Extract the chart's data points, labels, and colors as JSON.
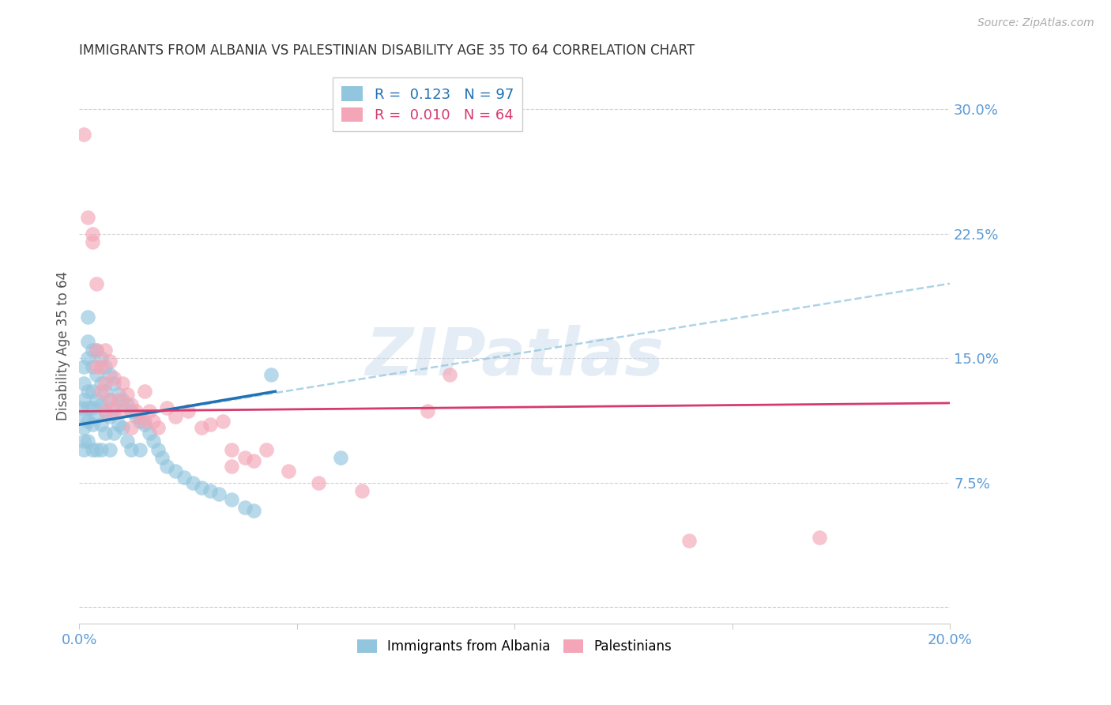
{
  "title": "IMMIGRANTS FROM ALBANIA VS PALESTINIAN DISABILITY AGE 35 TO 64 CORRELATION CHART",
  "source": "Source: ZipAtlas.com",
  "ylabel": "Disability Age 35 to 64",
  "ytick_labels": [
    "",
    "7.5%",
    "15.0%",
    "22.5%",
    "30.0%"
  ],
  "ytick_values": [
    0.0,
    0.075,
    0.15,
    0.225,
    0.3
  ],
  "xlim": [
    0.0,
    0.2
  ],
  "ylim": [
    -0.01,
    0.325
  ],
  "legend_R1": "0.123",
  "legend_N1": "97",
  "legend_R2": "0.010",
  "legend_N2": "64",
  "color_albania": "#92c5de",
  "color_palestinians": "#f4a6b8",
  "color_line_albania": "#2171b5",
  "color_line_palestinians": "#d63a6e",
  "color_dashed": "#92c5de",
  "color_axis_labels": "#5b9bd5",
  "color_grid": "#cccccc",
  "watermark": "ZIPatlas",
  "albania_line_x": [
    0.0,
    0.045
  ],
  "albania_line_y": [
    0.11,
    0.13
  ],
  "palestinians_line_x": [
    0.0,
    0.2
  ],
  "palestinians_line_y": [
    0.118,
    0.123
  ],
  "dashed_line_x": [
    0.0,
    0.2
  ],
  "dashed_line_y": [
    0.11,
    0.195
  ],
  "albania_x": [
    0.0005,
    0.001,
    0.001,
    0.001,
    0.001,
    0.001,
    0.001,
    0.001,
    0.002,
    0.002,
    0.002,
    0.002,
    0.002,
    0.002,
    0.002,
    0.003,
    0.003,
    0.003,
    0.003,
    0.003,
    0.003,
    0.004,
    0.004,
    0.004,
    0.004,
    0.004,
    0.005,
    0.005,
    0.005,
    0.005,
    0.005,
    0.006,
    0.006,
    0.006,
    0.006,
    0.007,
    0.007,
    0.007,
    0.007,
    0.008,
    0.008,
    0.008,
    0.009,
    0.009,
    0.01,
    0.01,
    0.011,
    0.011,
    0.012,
    0.012,
    0.013,
    0.014,
    0.014,
    0.015,
    0.016,
    0.017,
    0.018,
    0.019,
    0.02,
    0.022,
    0.024,
    0.026,
    0.028,
    0.03,
    0.032,
    0.035,
    0.038,
    0.04,
    0.044,
    0.06
  ],
  "albania_y": [
    0.12,
    0.145,
    0.135,
    0.125,
    0.115,
    0.108,
    0.1,
    0.095,
    0.175,
    0.16,
    0.15,
    0.13,
    0.12,
    0.112,
    0.1,
    0.155,
    0.145,
    0.13,
    0.12,
    0.11,
    0.095,
    0.155,
    0.14,
    0.125,
    0.115,
    0.095,
    0.15,
    0.135,
    0.122,
    0.11,
    0.095,
    0.145,
    0.13,
    0.118,
    0.105,
    0.14,
    0.125,
    0.115,
    0.095,
    0.135,
    0.12,
    0.105,
    0.128,
    0.11,
    0.125,
    0.108,
    0.122,
    0.1,
    0.118,
    0.095,
    0.115,
    0.112,
    0.095,
    0.11,
    0.105,
    0.1,
    0.095,
    0.09,
    0.085,
    0.082,
    0.078,
    0.075,
    0.072,
    0.07,
    0.068,
    0.065,
    0.06,
    0.058,
    0.14,
    0.09
  ],
  "palestinians_x": [
    0.001,
    0.002,
    0.003,
    0.003,
    0.004,
    0.004,
    0.004,
    0.005,
    0.005,
    0.006,
    0.006,
    0.006,
    0.007,
    0.007,
    0.008,
    0.008,
    0.009,
    0.01,
    0.01,
    0.011,
    0.012,
    0.012,
    0.013,
    0.014,
    0.015,
    0.015,
    0.016,
    0.017,
    0.018,
    0.02,
    0.022,
    0.025,
    0.028,
    0.03,
    0.033,
    0.035,
    0.035,
    0.038,
    0.04,
    0.043,
    0.048,
    0.055,
    0.065,
    0.08,
    0.085,
    0.14,
    0.17
  ],
  "palestinians_y": [
    0.285,
    0.235,
    0.225,
    0.22,
    0.195,
    0.155,
    0.145,
    0.145,
    0.13,
    0.155,
    0.135,
    0.118,
    0.148,
    0.125,
    0.138,
    0.118,
    0.125,
    0.135,
    0.118,
    0.128,
    0.122,
    0.108,
    0.118,
    0.115,
    0.13,
    0.112,
    0.118,
    0.112,
    0.108,
    0.12,
    0.115,
    0.118,
    0.108,
    0.11,
    0.112,
    0.095,
    0.085,
    0.09,
    0.088,
    0.095,
    0.082,
    0.075,
    0.07,
    0.118,
    0.14,
    0.04,
    0.042
  ]
}
